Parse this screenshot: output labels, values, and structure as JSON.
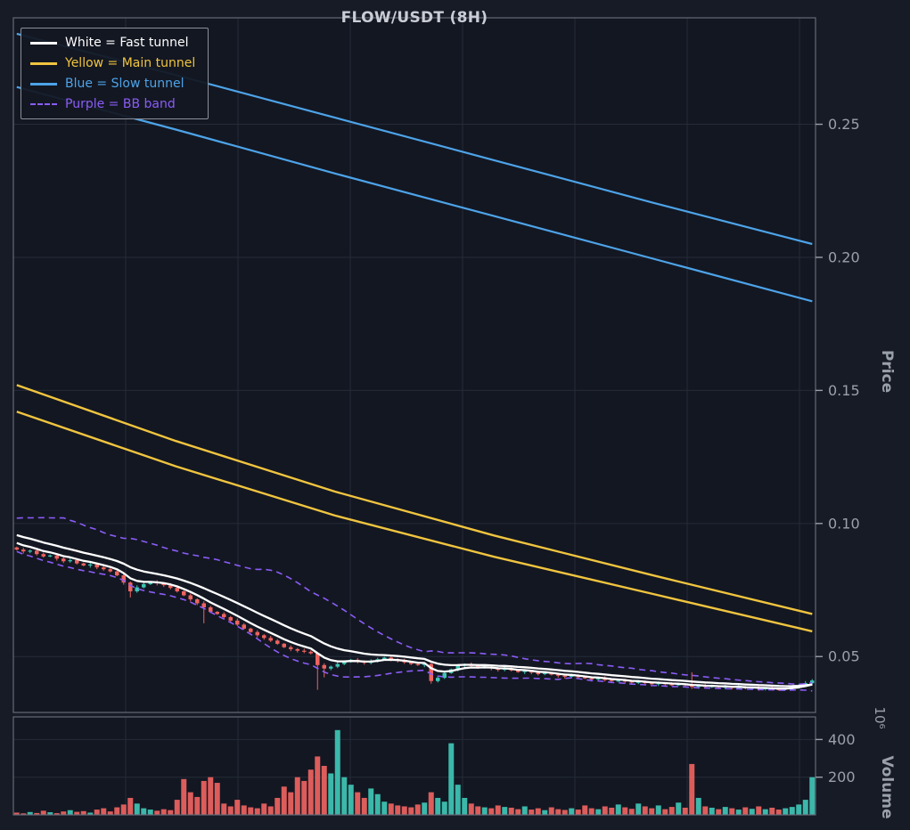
{
  "chart_data": {
    "type": "candlestick",
    "title": "FLOW/USDT (8H)",
    "xlabel": "",
    "ylabel": "Price",
    "volume_label": "Volume",
    "volume_multiplier": "10⁶",
    "ylim": [
      0.029,
      0.29
    ],
    "volume_ylim": [
      0,
      520
    ],
    "price_ticks": [
      0.25,
      0.2,
      0.15,
      0.1,
      0.05
    ],
    "price_tick_labels": [
      "0.25",
      "0.20",
      "0.15",
      "0.10",
      "0.05"
    ],
    "volume_ticks": [
      400,
      200
    ],
    "volume_tick_labels": [
      "400",
      "200"
    ],
    "grid": true,
    "legend_position": "upper-left",
    "legend": [
      {
        "label": "White = Fast tunnel",
        "color": "#ffffff",
        "dash": false
      },
      {
        "label": "Yellow = Main tunnel",
        "color": "#f0c43f",
        "dash": false
      },
      {
        "label": "Blue = Slow tunnel",
        "color": "#4da3e8",
        "dash": false
      },
      {
        "label": "Purple = BB band",
        "color": "#8a5cf6",
        "dash": true
      }
    ],
    "colors": {
      "up": "#3fc6b5",
      "down": "#ee6360",
      "background": "#171b26",
      "pane": "#131722",
      "grid": "#252b38",
      "spine": "#646a77",
      "tick_text": "#9aa0aa",
      "title": "#c9ccd4",
      "white_line": "#ffffff",
      "yellow_line": "#f0c43f",
      "blue_line": "#4da3e8",
      "purple_line": "#8a5cf6"
    },
    "series": {
      "slow_tunnel_upper": [
        0.284,
        0.2685,
        0.2525,
        0.2365,
        0.2205,
        0.205
      ],
      "slow_tunnel_lower": [
        0.264,
        0.248,
        0.2315,
        0.2155,
        0.1995,
        0.1835
      ],
      "main_tunnel_upper": [
        0.152,
        0.131,
        0.112,
        0.0955,
        0.0805,
        0.066
      ],
      "main_tunnel_lower": [
        0.142,
        0.1215,
        0.103,
        0.0875,
        0.0735,
        0.0595
      ],
      "fast_tunnel": {
        "ema_fast": 6,
        "ema_slow": 14,
        "slow_offset": 0.0005
      },
      "bb_band": {
        "window": 20,
        "k": 2
      }
    },
    "candles": {
      "open_first": 0.091,
      "pre_closes": [
        0.1005,
        0.0992,
        0.0998,
        0.098,
        0.0968,
        0.0975,
        0.0958,
        0.0946,
        0.095,
        0.0935,
        0.0922,
        0.0915
      ],
      "closes": [
        0.0902,
        0.0895,
        0.0898,
        0.0885,
        0.0876,
        0.088,
        0.0868,
        0.0858,
        0.0862,
        0.085,
        0.0842,
        0.0846,
        0.0835,
        0.0828,
        0.082,
        0.0805,
        0.0778,
        0.0745,
        0.076,
        0.0772,
        0.078,
        0.0775,
        0.0768,
        0.0758,
        0.0745,
        0.073,
        0.0715,
        0.07,
        0.0685,
        0.0668,
        0.066,
        0.0648,
        0.0635,
        0.062,
        0.0605,
        0.0592,
        0.058,
        0.057,
        0.056,
        0.0548,
        0.0535,
        0.0528,
        0.0522,
        0.0518,
        0.0512,
        0.0468,
        0.0455,
        0.0462,
        0.0472,
        0.048,
        0.0488,
        0.0482,
        0.0476,
        0.0482,
        0.049,
        0.0496,
        0.049,
        0.0484,
        0.0478,
        0.0472,
        0.0468,
        0.0472,
        0.0408,
        0.042,
        0.0438,
        0.0452,
        0.0465,
        0.047,
        0.0464,
        0.0458,
        0.0462,
        0.0456,
        0.045,
        0.0455,
        0.0448,
        0.0442,
        0.0446,
        0.044,
        0.0434,
        0.0438,
        0.0432,
        0.0428,
        0.0424,
        0.0428,
        0.0422,
        0.0418,
        0.0414,
        0.0418,
        0.0412,
        0.0408,
        0.041,
        0.0406,
        0.0402,
        0.0405,
        0.04,
        0.0397,
        0.04,
        0.0396,
        0.0394,
        0.0396,
        0.0392,
        0.0386,
        0.039,
        0.0386,
        0.0389,
        0.0385,
        0.0387,
        0.0383,
        0.0385,
        0.0381,
        0.0383,
        0.0379,
        0.0381,
        0.0378,
        0.0376,
        0.038,
        0.0386,
        0.0392,
        0.04,
        0.041
      ],
      "volumes": [
        12,
        8,
        15,
        10,
        22,
        14,
        9,
        18,
        25,
        16,
        20,
        12,
        28,
        35,
        18,
        40,
        55,
        90,
        60,
        35,
        28,
        22,
        30,
        25,
        80,
        190,
        120,
        95,
        180,
        200,
        170,
        60,
        45,
        80,
        50,
        40,
        35,
        60,
        45,
        90,
        150,
        120,
        200,
        180,
        240,
        310,
        260,
        220,
        450,
        200,
        160,
        120,
        90,
        140,
        110,
        70,
        60,
        50,
        45,
        40,
        55,
        65,
        120,
        90,
        70,
        380,
        160,
        90,
        60,
        45,
        40,
        35,
        50,
        42,
        38,
        30,
        45,
        28,
        35,
        25,
        40,
        30,
        26,
        35,
        28,
        50,
        35,
        30,
        45,
        38,
        55,
        40,
        32,
        60,
        45,
        35,
        50,
        30,
        42,
        65,
        38,
        270,
        90,
        45,
        38,
        30,
        42,
        35,
        28,
        40,
        32,
        45,
        30,
        38,
        28,
        35,
        42,
        55,
        80,
        200
      ],
      "wick_overrides": {
        "17": {
          "low": 0.0722
        },
        "28": {
          "low": 0.0625
        },
        "45": {
          "low": 0.0375
        },
        "46": {
          "low": 0.0422
        },
        "62": {
          "low": 0.0398
        },
        "101": {
          "high": 0.0441
        }
      }
    }
  }
}
